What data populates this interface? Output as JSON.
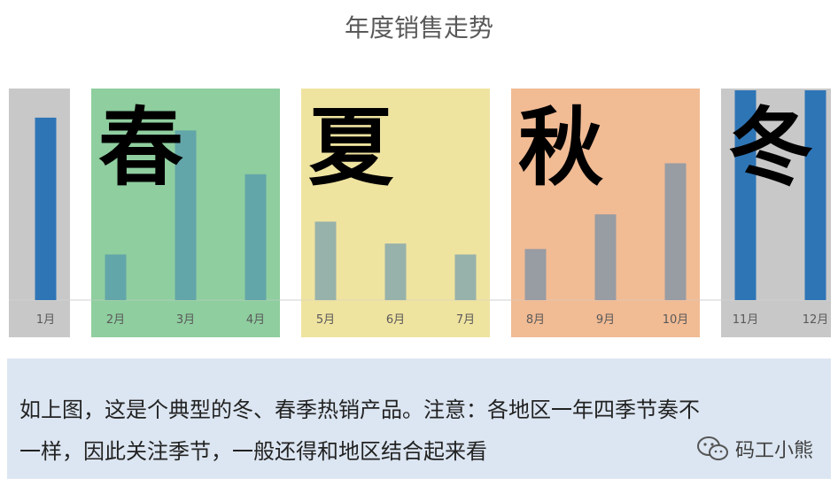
{
  "chart_data": {
    "type": "bar",
    "title": "年度销售走势",
    "categories": [
      "1月",
      "2月",
      "3月",
      "4月",
      "5月",
      "6月",
      "7月",
      "8月",
      "9月",
      "10月",
      "11月",
      "12月"
    ],
    "values": [
      100,
      25,
      93,
      69,
      43,
      31,
      25,
      28,
      47,
      75,
      115,
      115
    ],
    "ylim": [
      0,
      115
    ],
    "grid": false,
    "colors": {
      "bar": "#2e75b6"
    },
    "seasons": [
      {
        "label": "春",
        "months": [
          "2月",
          "3月",
          "4月"
        ],
        "color": "#8fce9f"
      },
      {
        "label": "夏",
        "months": [
          "5月",
          "6月",
          "7月"
        ],
        "color": "#efe3a0"
      },
      {
        "label": "秋",
        "months": [
          "8月",
          "9月",
          "10月"
        ],
        "color": "#f1bb94"
      },
      {
        "label": "冬",
        "months": [
          "11月",
          "12月",
          "1月"
        ],
        "color": "#c8c8c8"
      }
    ]
  },
  "note": {
    "line1": "如上图，这是个典型的冬、春季热销产品。注意：各地区一年四季节奏不",
    "line2": "一样，因此关注季节，一般还得和地区结合起来看"
  },
  "watermark": {
    "text": "码工小熊",
    "icon": "wechat-icon"
  }
}
